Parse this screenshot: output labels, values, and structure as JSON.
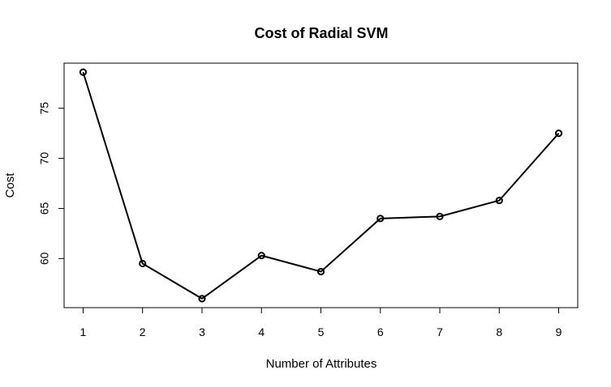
{
  "chart_data": {
    "type": "line",
    "title": "Cost of Radial SVM",
    "xlabel": "Number of Attributes",
    "ylabel": "Cost",
    "x": [
      1,
      2,
      3,
      4,
      5,
      6,
      7,
      8,
      9
    ],
    "y": [
      78.6,
      59.5,
      56.0,
      60.3,
      58.7,
      64.0,
      64.2,
      65.8,
      72.5
    ],
    "xlim": [
      0.68,
      9.32
    ],
    "ylim": [
      55.1,
      79.5
    ],
    "xticks": [
      1,
      2,
      3,
      4,
      5,
      6,
      7,
      8,
      9
    ],
    "yticks": [
      60,
      65,
      70,
      75
    ],
    "grid": false,
    "marker": "open-circle",
    "line_color": "#000000"
  }
}
